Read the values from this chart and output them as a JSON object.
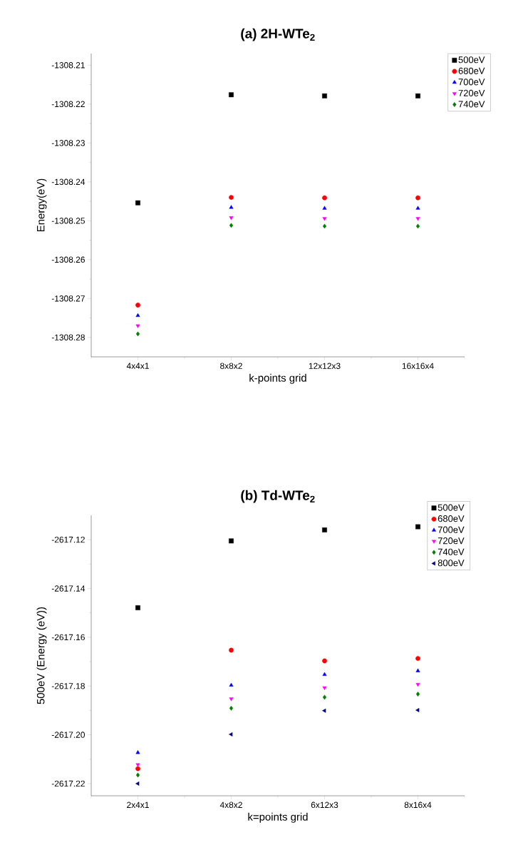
{
  "chart_data": [
    {
      "type": "scatter",
      "title": "(a) 2H-WTe$_{2}$",
      "xlabel": "k-points grid",
      "ylabel": "Energy(eV)",
      "categories": [
        "4x4x1",
        "8x8x2",
        "12x12x3",
        "16x16x4"
      ],
      "series": [
        {
          "name": "500eV",
          "color": "#000000",
          "marker": "square",
          "values": [
            -1308.2454,
            -1308.2176,
            -1308.2179,
            -1308.2179
          ]
        },
        {
          "name": "680eV",
          "color": "#ff0000",
          "marker": "circle",
          "values": [
            -1308.2717,
            -1308.244,
            -1308.2441,
            -1308.2441
          ]
        },
        {
          "name": "700eV",
          "color": "#0000ff",
          "marker": "triangle",
          "values": [
            -1308.2744,
            -1308.2466,
            -1308.2468,
            -1308.2468
          ]
        },
        {
          "name": "720eV",
          "color": "#ff00ff",
          "marker": "triangle-down",
          "values": [
            -1308.277,
            -1308.2492,
            -1308.2494,
            -1308.2494
          ]
        },
        {
          "name": "740eV",
          "color": "#008000",
          "marker": "diamond",
          "values": [
            -1308.2791,
            -1308.2512,
            -1308.2514,
            -1308.2514
          ]
        }
      ],
      "ylim": [
        -1308.285,
        -1308.207
      ],
      "yticks": [
        -1308.21,
        -1308.22,
        -1308.23,
        -1308.24,
        -1308.25,
        -1308.26,
        -1308.27,
        -1308.28
      ],
      "legend": "top right",
      "grid": false
    },
    {
      "type": "scatter",
      "title": "(b) Td-WTe$_{2}$",
      "xlabel": "k=points grid",
      "ylabel": "500eV (Energy (eV))",
      "categories": [
        "2x4x1",
        "4x8x2",
        "6x12x3",
        "8x16x4"
      ],
      "series": [
        {
          "name": "500eV",
          "color": "#000000",
          "marker": "square",
          "values": [
            -2617.1479,
            -2617.1205,
            -2617.116,
            -2617.1147
          ]
        },
        {
          "name": "680eV",
          "color": "#ff0000",
          "marker": "circle",
          "values": [
            -2617.2139,
            -2617.1653,
            -2617.1697,
            -2617.1687
          ]
        },
        {
          "name": "700eV",
          "color": "#0000ff",
          "marker": "triangle",
          "values": [
            -2617.2073,
            -2617.1797,
            -2617.1753,
            -2617.1738
          ]
        },
        {
          "name": "720eV",
          "color": "#ff00ff",
          "marker": "triangle-down",
          "values": [
            -2617.2122,
            -2617.1852,
            -2617.1807,
            -2617.1793
          ]
        },
        {
          "name": "740eV",
          "color": "#008000",
          "marker": "diamond",
          "values": [
            -2617.2165,
            -2617.1891,
            -2617.1846,
            -2617.1833
          ]
        },
        {
          "name": "800eV",
          "color": "#000080",
          "marker": "triangle-left",
          "values": [
            -2617.22,
            -2617.1998,
            -2617.1901,
            -2617.1899
          ]
        }
      ],
      "ylim": [
        -2617.225,
        -2617.11
      ],
      "yticks": [
        -2617.12,
        -2617.14,
        -2617.16,
        -2617.18,
        {
          "value": -2617.2,
          "label": "-2617.20"
        },
        -2617.22
      ],
      "legend": "top right",
      "grid": false
    }
  ]
}
